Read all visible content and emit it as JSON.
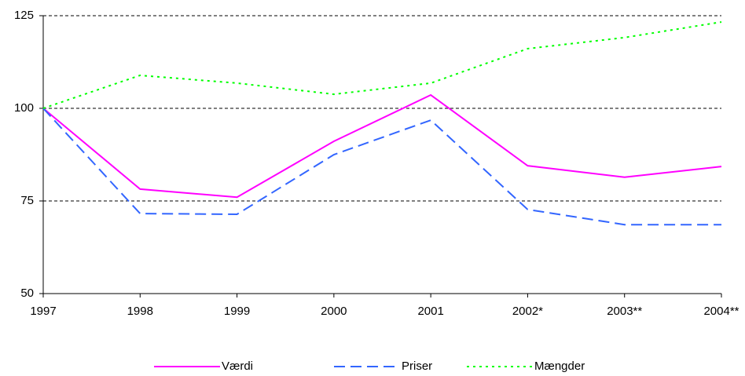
{
  "chart_data": {
    "type": "line",
    "categories": [
      "1997",
      "1998",
      "1999",
      "2000",
      "2001",
      "2002*",
      "2003**",
      "2004**"
    ],
    "series": [
      {
        "name": "Værdi",
        "color": "#ff00ff",
        "dash": "solid",
        "values": [
          100,
          78.2,
          76,
          91.1,
          103.6,
          84.5,
          81.4,
          84.3
        ]
      },
      {
        "name": "Priser",
        "color": "#3366ff",
        "dash": "dashed",
        "values": [
          100,
          71.6,
          71.4,
          87.5,
          96.8,
          72.7,
          68.6,
          68.6
        ]
      },
      {
        "name": "Mængder",
        "color": "#00ff00",
        "dash": "dotted",
        "values": [
          100,
          108.9,
          106.8,
          103.8,
          106.8,
          116.1,
          119.1,
          123.3
        ]
      }
    ],
    "ylim": [
      50,
      125
    ],
    "yticks": [
      50,
      75,
      100,
      125
    ],
    "grid": true,
    "legend": "bottom"
  }
}
